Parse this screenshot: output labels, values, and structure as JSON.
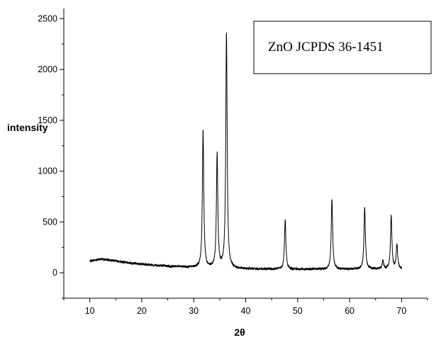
{
  "chart_data": {
    "type": "line",
    "xlabel": "2θ",
    "ylabel": "intensity",
    "xlim": [
      5,
      75
    ],
    "ylim": [
      -250,
      2600
    ],
    "x_ticks": [
      10,
      20,
      30,
      40,
      50,
      60,
      70
    ],
    "y_ticks": [
      0,
      500,
      1000,
      1500,
      2000,
      2500
    ],
    "grid": false,
    "line_color": "#000000",
    "legend": {
      "text": "ZnO JCPDS 36-1451",
      "position": "top-right"
    },
    "baseline": [
      [
        10,
        115
      ],
      [
        12,
        135
      ],
      [
        14,
        125
      ],
      [
        16,
        108
      ],
      [
        18,
        95
      ],
      [
        20,
        85
      ],
      [
        22,
        77
      ],
      [
        24,
        70
      ],
      [
        26,
        64
      ],
      [
        28,
        58
      ],
      [
        30,
        52
      ],
      [
        32,
        48
      ],
      [
        34,
        45
      ],
      [
        36,
        42
      ],
      [
        38,
        40
      ],
      [
        40,
        38
      ],
      [
        45,
        36
      ],
      [
        50,
        35
      ],
      [
        55,
        35
      ],
      [
        60,
        36
      ],
      [
        65,
        37
      ],
      [
        70,
        38
      ]
    ],
    "peaks": [
      {
        "x": 25.5,
        "y": 55
      },
      {
        "x": 31.8,
        "y": 1390
      },
      {
        "x": 34.5,
        "y": 1160
      },
      {
        "x": 36.3,
        "y": 2350
      },
      {
        "x": 47.6,
        "y": 520
      },
      {
        "x": 56.6,
        "y": 730
      },
      {
        "x": 62.9,
        "y": 640
      },
      {
        "x": 66.4,
        "y": 120
      },
      {
        "x": 68.0,
        "y": 560
      },
      {
        "x": 69.1,
        "y": 280
      }
    ]
  }
}
